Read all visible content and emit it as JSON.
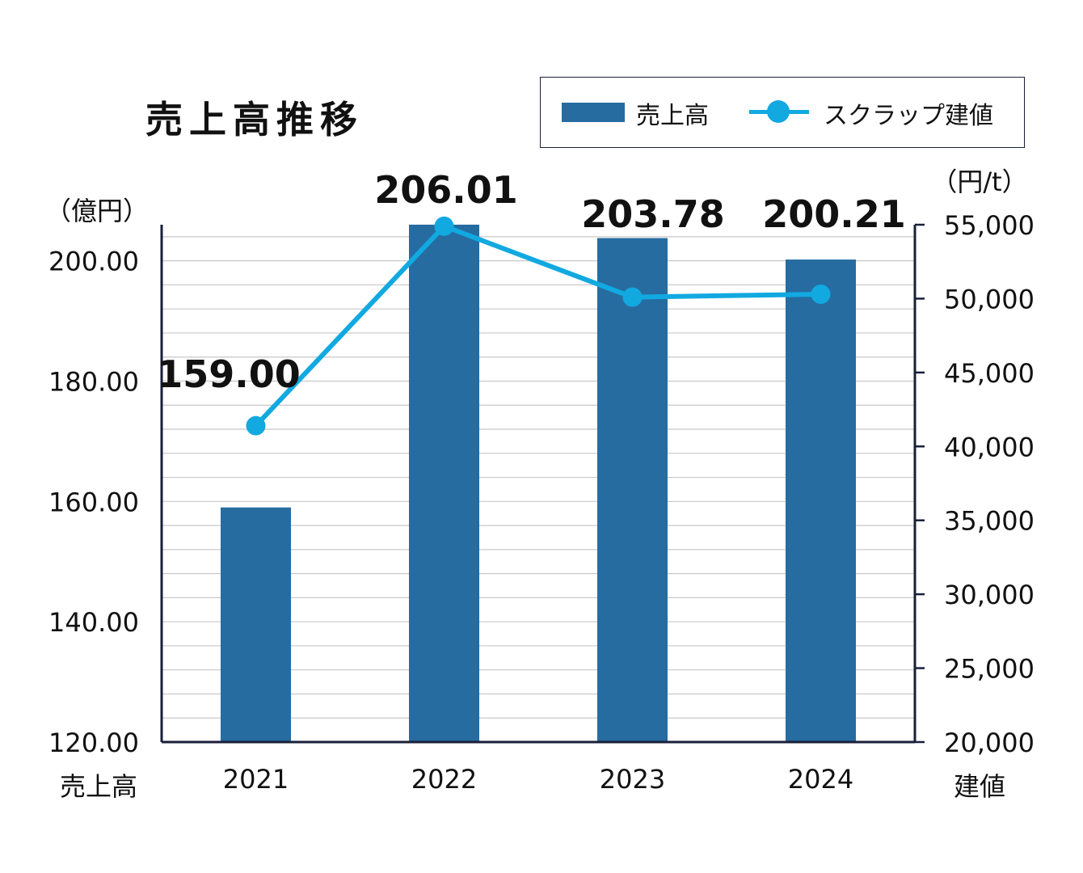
{
  "colors": {
    "bar": "#266ca0",
    "line": "#12a9e1",
    "axis": "#1a1f3a",
    "grid": "#c8c8c8"
  },
  "chart_data": {
    "type": "bar+line",
    "title": "売上高推移",
    "legend": {
      "position": "top-right",
      "items": [
        "売上高",
        "スクラップ建値"
      ]
    },
    "categories": [
      "2021",
      "2022",
      "2023",
      "2024"
    ],
    "series": [
      {
        "name": "売上高",
        "type": "bar",
        "axis": "left",
        "values": [
          159.0,
          206.01,
          203.78,
          200.21
        ],
        "labels": [
          "159.00",
          "206.01",
          "203.78",
          "200.21"
        ]
      },
      {
        "name": "スクラップ建値",
        "type": "line",
        "axis": "right",
        "values": [
          41400,
          54900,
          50100,
          50300
        ]
      }
    ],
    "y_left": {
      "unit": "（億円）",
      "label": "売上高",
      "range": [
        120,
        206
      ],
      "ticks": [
        "200.00",
        "180.00",
        "160.00",
        "140.00",
        "120.00"
      ],
      "tick_values": [
        200,
        180,
        160,
        140,
        120
      ]
    },
    "y_right": {
      "unit": "（円/t）",
      "label": "建値",
      "range": [
        20000,
        55000
      ],
      "ticks": [
        "55,000",
        "50,000",
        "45,000",
        "40,000",
        "35,000",
        "30,000",
        "25,000",
        "20,000"
      ],
      "tick_values": [
        55000,
        50000,
        45000,
        40000,
        35000,
        30000,
        25000,
        20000
      ]
    }
  }
}
